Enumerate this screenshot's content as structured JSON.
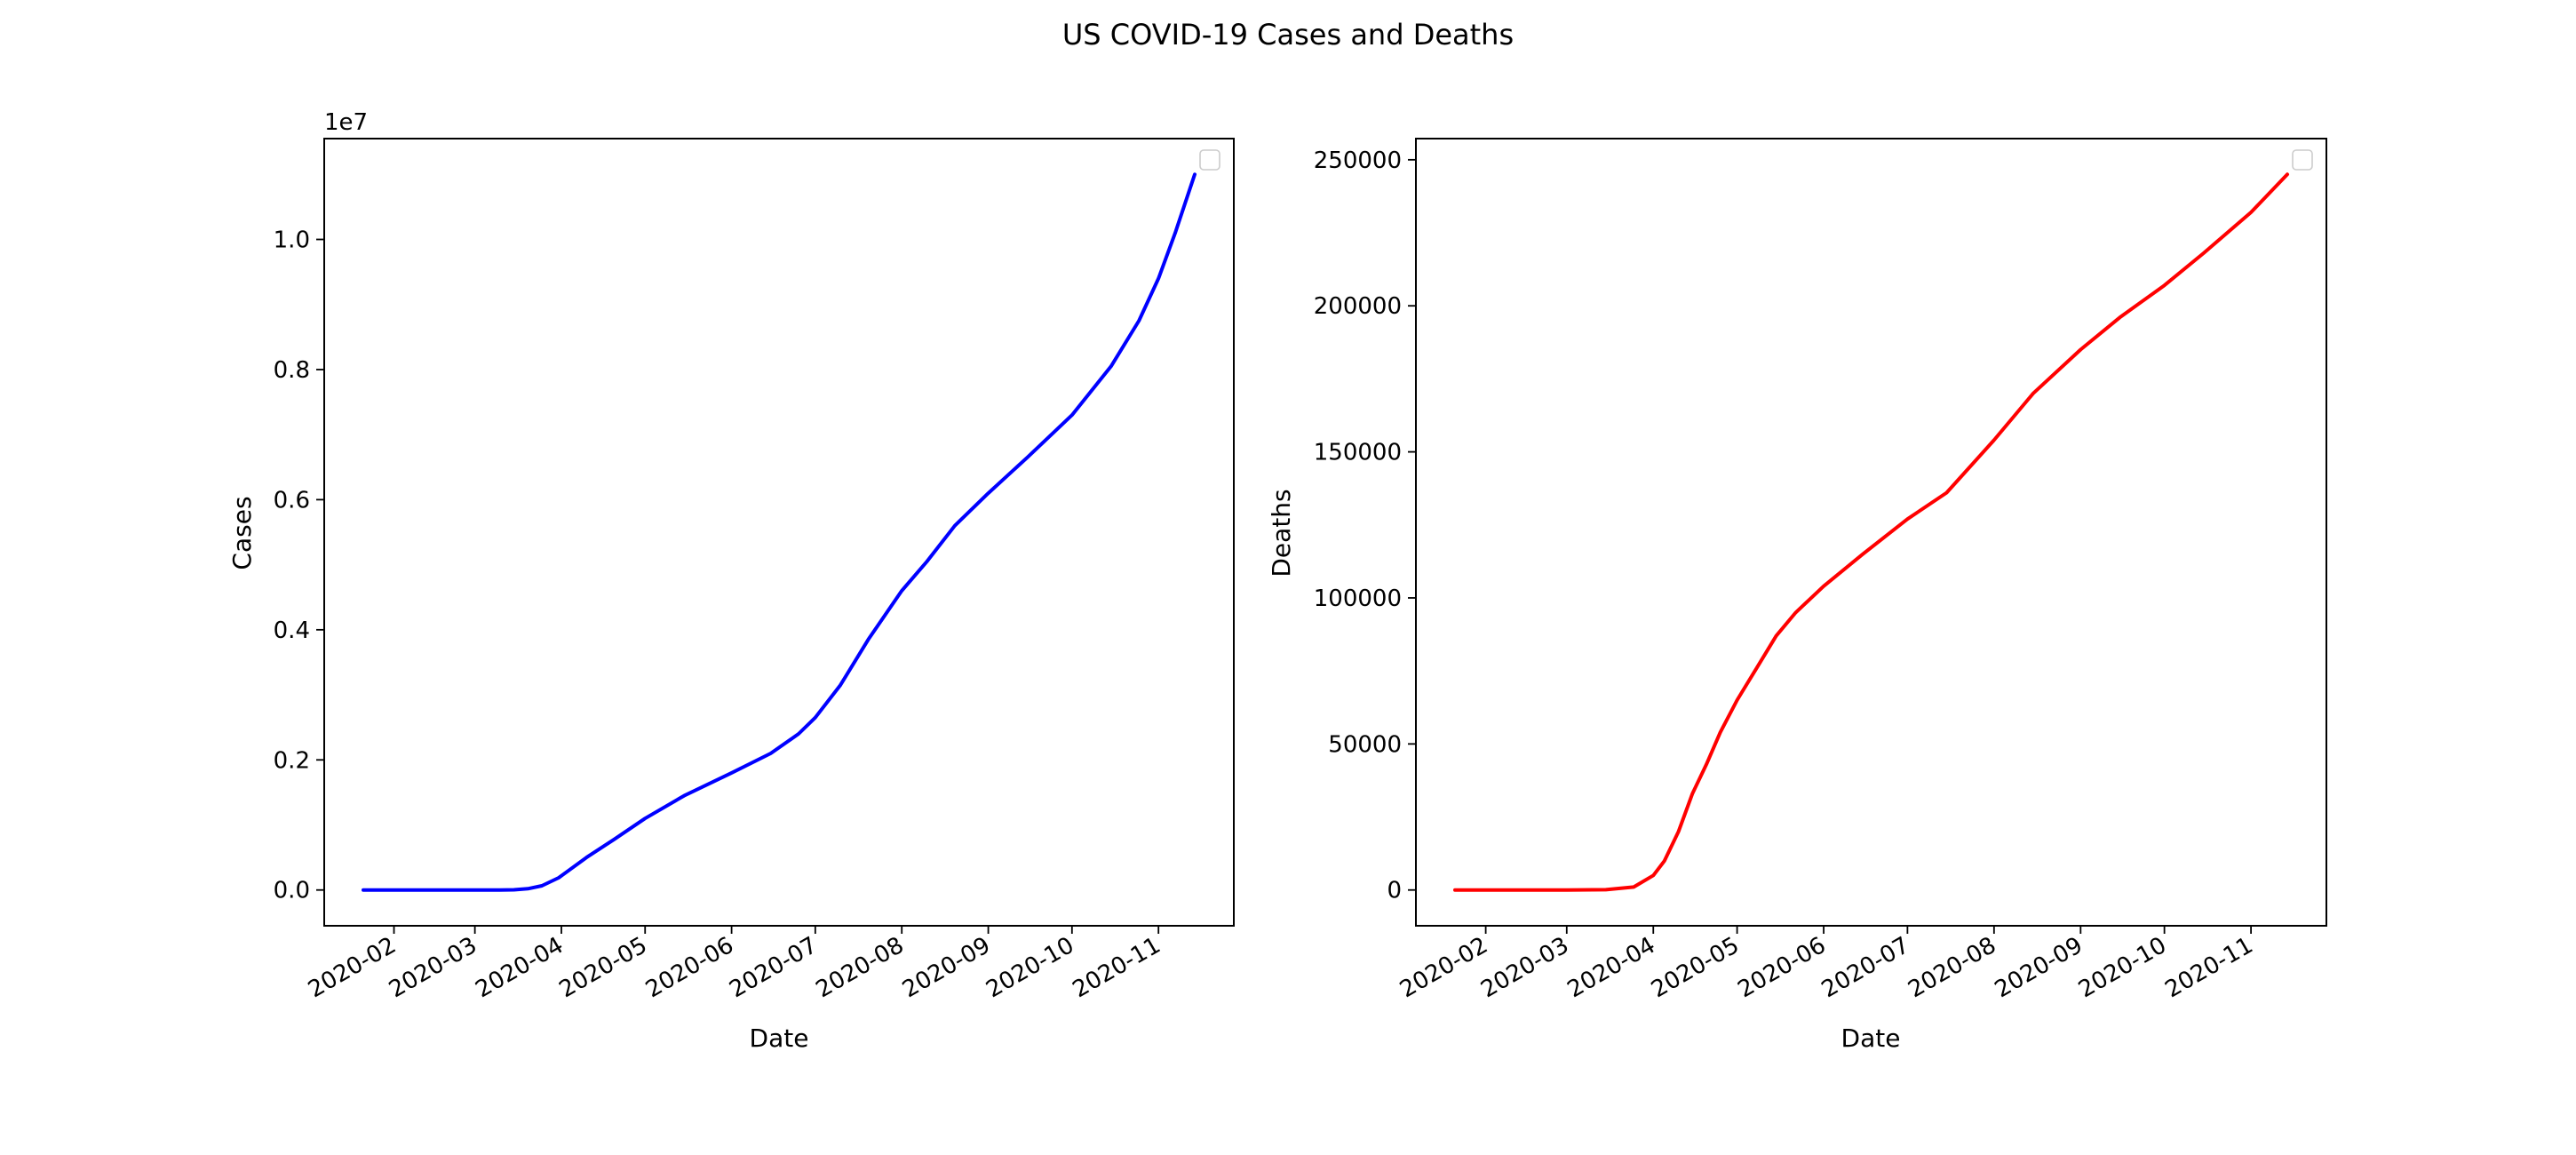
{
  "figure": {
    "title": "US COVID-19 Cases and Deaths"
  },
  "chart_data": [
    {
      "type": "line",
      "xlabel": "Date",
      "ylabel": "Cases",
      "y_offset_label": "1e7",
      "x_tick_labels": [
        "2020-02",
        "2020-03",
        "2020-04",
        "2020-05",
        "2020-06",
        "2020-07",
        "2020-08",
        "2020-09",
        "2020-10",
        "2020-11"
      ],
      "y_tick_labels": [
        "0.0",
        "0.2",
        "0.4",
        "0.6",
        "0.8",
        "1.0"
      ],
      "y_tick_values": [
        0,
        2000000,
        4000000,
        6000000,
        8000000,
        10000000
      ],
      "xlim": [
        "2020-01-07",
        "2020-11-28"
      ],
      "ylim": [
        -550000,
        11550000
      ],
      "legend": {
        "placement": "upper right",
        "entries": []
      },
      "grid": false,
      "series": [
        {
          "color": "#0000ff",
          "x": [
            "2020-01-21",
            "2020-02-15",
            "2020-03-10",
            "2020-03-15",
            "2020-03-20",
            "2020-03-25",
            "2020-03-31",
            "2020-04-10",
            "2020-04-20",
            "2020-05-01",
            "2020-05-15",
            "2020-06-01",
            "2020-06-15",
            "2020-06-25",
            "2020-07-01",
            "2020-07-10",
            "2020-07-20",
            "2020-08-01",
            "2020-08-10",
            "2020-08-20",
            "2020-09-01",
            "2020-09-15",
            "2020-10-01",
            "2020-10-15",
            "2020-10-25",
            "2020-11-01",
            "2020-11-07",
            "2020-11-14"
          ],
          "values": [
            1,
            1,
            1000,
            3500,
            19000,
            65000,
            188000,
            500000,
            780000,
            1100000,
            1450000,
            1800000,
            2100000,
            2400000,
            2650000,
            3150000,
            3850000,
            4600000,
            5050000,
            5600000,
            6100000,
            6650000,
            7300000,
            8050000,
            8750000,
            9400000,
            10100000,
            11000000
          ]
        }
      ]
    },
    {
      "type": "line",
      "xlabel": "Date",
      "ylabel": "Deaths",
      "x_tick_labels": [
        "2020-02",
        "2020-03",
        "2020-04",
        "2020-05",
        "2020-06",
        "2020-07",
        "2020-08",
        "2020-09",
        "2020-10",
        "2020-11"
      ],
      "y_tick_labels": [
        "0",
        "50000",
        "100000",
        "150000",
        "200000",
        "250000"
      ],
      "y_tick_values": [
        0,
        50000,
        100000,
        150000,
        200000,
        250000
      ],
      "xlim": [
        "2020-01-07",
        "2020-11-28"
      ],
      "ylim": [
        -12250,
        257250
      ],
      "legend": {
        "placement": "upper right",
        "entries": []
      },
      "grid": false,
      "series": [
        {
          "color": "#ff0000",
          "x": [
            "2020-01-21",
            "2020-03-01",
            "2020-03-15",
            "2020-03-25",
            "2020-04-01",
            "2020-04-05",
            "2020-04-10",
            "2020-04-15",
            "2020-04-20",
            "2020-04-25",
            "2020-05-01",
            "2020-05-08",
            "2020-05-15",
            "2020-05-22",
            "2020-06-01",
            "2020-06-15",
            "2020-07-01",
            "2020-07-15",
            "2020-08-01",
            "2020-08-15",
            "2020-09-01",
            "2020-09-15",
            "2020-10-01",
            "2020-10-15",
            "2020-11-01",
            "2020-11-14"
          ],
          "values": [
            0,
            0,
            100,
            1000,
            5000,
            10000,
            20000,
            33000,
            43000,
            54000,
            65000,
            76000,
            87000,
            95000,
            104000,
            115000,
            127000,
            136000,
            154000,
            170000,
            185000,
            196000,
            207000,
            218000,
            232000,
            245000
          ]
        }
      ]
    }
  ]
}
